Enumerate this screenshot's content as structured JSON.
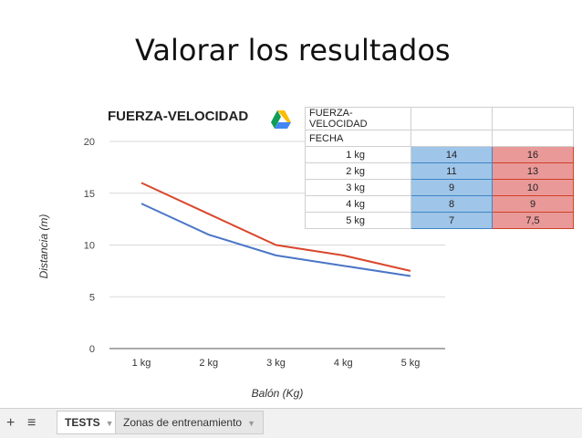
{
  "slide": {
    "title": "Valorar los resultados"
  },
  "chart_data": {
    "type": "line",
    "title": "FUERZA-VELOCIDAD",
    "xlabel": "Balón (Kg)",
    "ylabel": "Distancia (m)",
    "categories": [
      "1 kg",
      "2 kg",
      "3 kg",
      "4 kg",
      "5 kg"
    ],
    "y_ticks": [
      "0",
      "5",
      "10",
      "15",
      "20"
    ],
    "ylim": [
      0,
      20
    ],
    "grid": true,
    "series": [
      {
        "values": [
          14,
          11,
          9,
          8,
          7
        ],
        "color": "#4a76c7"
      },
      {
        "values": [
          16,
          13,
          10,
          9,
          7.5
        ],
        "color": "#d9472c"
      }
    ]
  },
  "sheet": {
    "header": "FUERZA-VELOCIDAD",
    "subheader": "FECHA",
    "rows": [
      {
        "label": "1 kg",
        "a": "14",
        "b": "16"
      },
      {
        "label": "2 kg",
        "a": "11",
        "b": "13"
      },
      {
        "label": "3 kg",
        "a": "9",
        "b": "10"
      },
      {
        "label": "4 kg",
        "a": "8",
        "b": "9"
      },
      {
        "label": "5 kg",
        "a": "7",
        "b": "7,5"
      }
    ]
  },
  "tabs": {
    "add_icon": "plus-icon",
    "list_icon": "list-icon",
    "items": [
      {
        "label": "TESTS"
      },
      {
        "label": "Zonas de entrenamiento"
      }
    ]
  }
}
